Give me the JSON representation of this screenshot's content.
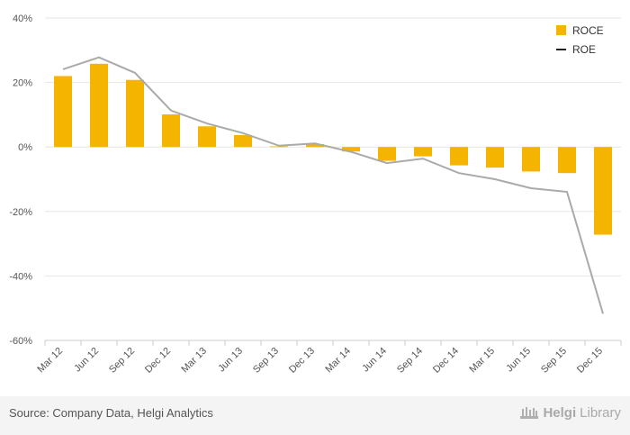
{
  "chart_data": {
    "type": "bar",
    "categories": [
      "Mar 12",
      "Jun 12",
      "Sep 12",
      "Dec 12",
      "Mar 13",
      "Jun 13",
      "Sep 13",
      "Dec 13",
      "Mar 14",
      "Jun 14",
      "Sep 14",
      "Dec 14",
      "Mar 15",
      "Jun 15",
      "Sep 15",
      "Dec 15"
    ],
    "series": [
      {
        "name": "ROCE",
        "kind": "bar",
        "color": "#f5b400",
        "values": [
          22.0,
          25.8,
          20.8,
          10.1,
          6.4,
          3.7,
          0.2,
          0.9,
          -1.4,
          -4.3,
          -2.9,
          -5.7,
          -6.4,
          -7.6,
          -8.1,
          -27.2
        ]
      },
      {
        "name": "ROE",
        "kind": "line",
        "color": "#aaaaaa",
        "values": [
          24.1,
          27.8,
          23.0,
          11.3,
          7.3,
          4.3,
          0.4,
          1.1,
          -1.5,
          -5.0,
          -3.6,
          -8.1,
          -10.0,
          -12.8,
          -13.9,
          -51.7
        ]
      }
    ],
    "yticks": [
      "40%",
      "20%",
      "0%",
      "-20%",
      "-40%",
      "-60%"
    ],
    "ylim": [
      -60,
      40
    ],
    "grid": true,
    "legend": "top-right"
  },
  "footer": {
    "source": "Source: Company Data, Helgi Analytics",
    "brand_bold": "Helgi",
    "brand_light": "Library"
  }
}
